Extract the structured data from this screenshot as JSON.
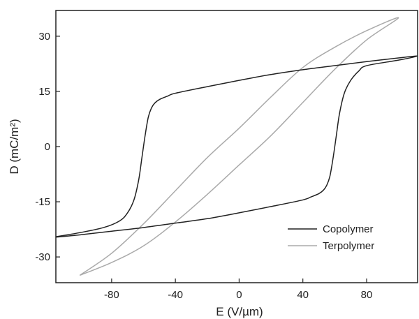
{
  "chart_data": {
    "type": "line",
    "xlabel": "E (V/µm)",
    "ylabel": "D (mC/m²)",
    "xlim": [
      -115,
      112
    ],
    "ylim": [
      -37,
      37
    ],
    "x_ticks": [
      -80,
      -40,
      0,
      40,
      80
    ],
    "y_ticks": [
      -30,
      -15,
      0,
      15,
      30
    ],
    "x_tick_labels": [
      "-80",
      "-40",
      "0",
      "40",
      "80"
    ],
    "y_tick_labels": [
      "-30",
      "-15",
      "0",
      "15",
      "30"
    ],
    "grid": false,
    "legend_position": "bottom-right",
    "series": [
      {
        "name": "Copolymer",
        "color": "#222222",
        "x": [
          -115,
          -100,
          -85,
          -75,
          -70,
          -66,
          -63,
          -61,
          -59,
          -57,
          -55,
          -53,
          -50,
          -45,
          -40,
          -20,
          0,
          20,
          40,
          60,
          80,
          100,
          112,
          100,
          80,
          75,
          70,
          66,
          63,
          61,
          59,
          57,
          55,
          53,
          50,
          45,
          40,
          20,
          0,
          -20,
          -40,
          -60,
          -80,
          -100,
          -115
        ],
        "y": [
          -24.5,
          -23.4,
          -22.0,
          -20.2,
          -18.0,
          -14.5,
          -9.0,
          -3.0,
          3.0,
          8.0,
          10.5,
          11.8,
          12.8,
          13.7,
          14.5,
          16.3,
          18.0,
          19.6,
          20.9,
          22.0,
          23.1,
          24.1,
          24.6,
          23.5,
          22.0,
          20.5,
          18.0,
          14.5,
          9.0,
          3.0,
          -3.0,
          -8.0,
          -10.5,
          -11.8,
          -12.8,
          -13.7,
          -14.5,
          -16.3,
          -18.0,
          -19.6,
          -20.8,
          -22.0,
          -23.0,
          -24.0,
          -24.6
        ]
      },
      {
        "name": "Terpolymer",
        "color": "#aaaaaa",
        "x": [
          -100,
          -80,
          -60,
          -40,
          -20,
          0,
          20,
          40,
          60,
          80,
          100,
          80,
          60,
          40,
          20,
          0,
          -20,
          -40,
          -60,
          -80,
          -100
        ],
        "y": [
          -35.0,
          -29.0,
          -21.0,
          -12.0,
          -3.0,
          5.0,
          13.5,
          21.5,
          27.0,
          31.5,
          35.0,
          29.0,
          21.0,
          12.0,
          3.0,
          -5.0,
          -13.0,
          -20.5,
          -27.0,
          -31.5,
          -35.0
        ]
      }
    ]
  }
}
